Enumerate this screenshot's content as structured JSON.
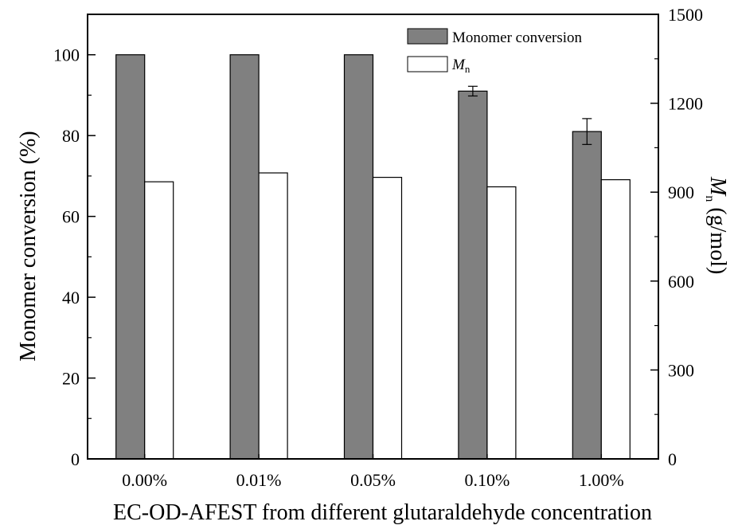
{
  "chart_data": {
    "type": "bar",
    "categories": [
      "0.00%",
      "0.01%",
      "0.05%",
      "0.10%",
      "1.00%"
    ],
    "xlabel": "EC-OD-AFEST from different glutaraldehyde concentration",
    "ylabel": "Monomer conversion (%)",
    "y2label_main": "M",
    "y2label_sub": "n",
    "y2label_rest": " (g/mol)",
    "ylim": [
      0,
      110
    ],
    "y2lim": [
      0,
      1500
    ],
    "yticks": [
      0,
      20,
      40,
      60,
      80,
      100
    ],
    "y2ticks": [
      0,
      300,
      600,
      900,
      1200,
      1500
    ],
    "series": [
      {
        "name": "Monomer conversion",
        "axis": "left",
        "color": "#808080",
        "values": [
          100,
          100,
          100,
          91,
          81
        ],
        "errors": [
          0,
          0,
          0,
          1.2,
          3.2
        ]
      },
      {
        "name_main": "M",
        "name_sub": "n",
        "axis": "right",
        "color": "#ffffff",
        "values": [
          935,
          965,
          950,
          918,
          942
        ]
      }
    ],
    "legend_position": "top-right"
  }
}
